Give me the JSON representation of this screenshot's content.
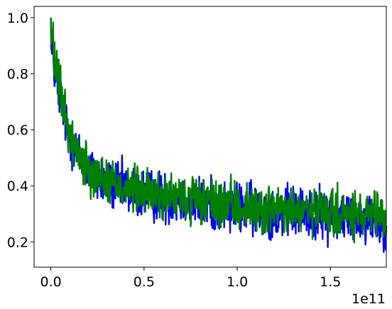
{
  "chart_data": {
    "type": "line",
    "title": "",
    "xlabel": "",
    "ylabel": "",
    "x_offset_label": "1e11",
    "xlim": [
      -0.09,
      1.8
    ],
    "ylim": [
      0.11,
      1.04
    ],
    "x_ticks": [
      {
        "value": 0.0,
        "label": "0.0"
      },
      {
        "value": 0.5,
        "label": "0.5"
      },
      {
        "value": 1.0,
        "label": "1.0"
      },
      {
        "value": 1.5,
        "label": "1.5"
      }
    ],
    "y_ticks": [
      {
        "value": 0.2,
        "label": "0.2"
      },
      {
        "value": 0.4,
        "label": "0.4"
      },
      {
        "value": 0.6,
        "label": "0.6"
      },
      {
        "value": 0.8,
        "label": "0.8"
      },
      {
        "value": 1.0,
        "label": "1.0"
      }
    ],
    "grid": false,
    "series": [
      {
        "color": "#0000ff",
        "x": [
          0.0,
          0.02,
          0.04,
          0.06,
          0.08,
          0.1,
          0.13,
          0.16,
          0.2,
          0.25,
          0.3,
          0.4,
          0.5,
          0.6,
          0.7,
          0.8,
          0.9,
          1.0,
          1.1,
          1.2,
          1.3,
          1.4,
          1.5,
          1.6,
          1.7,
          1.8
        ],
        "y": [
          0.88,
          0.82,
          0.75,
          0.7,
          0.63,
          0.58,
          0.53,
          0.49,
          0.46,
          0.43,
          0.41,
          0.39,
          0.37,
          0.36,
          0.35,
          0.34,
          0.33,
          0.32,
          0.315,
          0.31,
          0.305,
          0.3,
          0.295,
          0.29,
          0.285,
          0.28
        ],
        "noise": 0.06
      },
      {
        "color": "#008000",
        "x": [
          0.0,
          0.02,
          0.04,
          0.06,
          0.08,
          0.1,
          0.13,
          0.16,
          0.2,
          0.25,
          0.3,
          0.4,
          0.5,
          0.6,
          0.7,
          0.8,
          0.9,
          1.0,
          1.1,
          1.2,
          1.3,
          1.4,
          1.5,
          1.6,
          1.7,
          1.8
        ],
        "y": [
          0.95,
          0.84,
          0.77,
          0.71,
          0.64,
          0.59,
          0.54,
          0.5,
          0.47,
          0.44,
          0.42,
          0.395,
          0.375,
          0.365,
          0.355,
          0.345,
          0.335,
          0.325,
          0.32,
          0.315,
          0.31,
          0.305,
          0.3,
          0.295,
          0.29,
          0.285
        ],
        "noise": 0.055
      }
    ]
  }
}
